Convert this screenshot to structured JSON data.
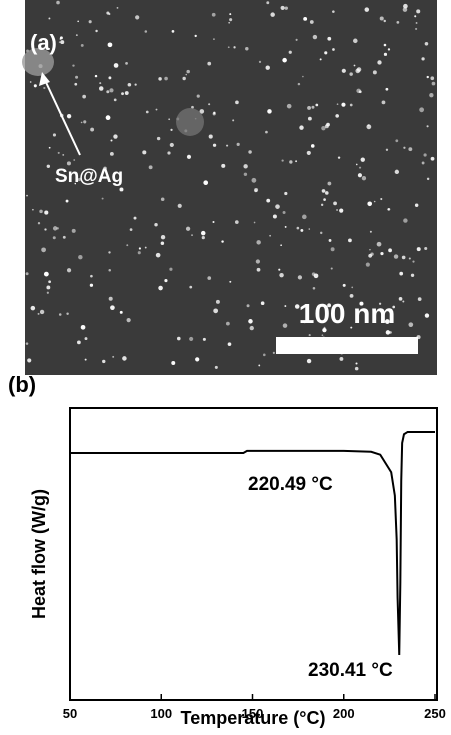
{
  "panel_a": {
    "label": "(a)",
    "annotation": "Sn@Ag",
    "scale_bar": "100 nm"
  },
  "chart_data": {
    "type": "line",
    "panel_label": "(b)",
    "xlabel": "Temperature (°C)",
    "ylabel": "Heat flow (W/g)",
    "xlim": [
      50,
      250
    ],
    "xticks": [
      50,
      100,
      150,
      200,
      250
    ],
    "ylim": [
      0,
      1
    ],
    "series": [
      {
        "color": "#000000",
        "x": [
          50,
          145,
          147,
          200,
          215,
          220,
          224,
          226,
          228,
          229,
          229.5,
          230.41,
          231,
          231.5,
          232,
          233,
          235,
          250
        ],
        "values": [
          0.846,
          0.846,
          0.853,
          0.853,
          0.85,
          0.84,
          0.8,
          0.78,
          0.7,
          0.55,
          0.35,
          0.154,
          0.4,
          0.75,
          0.88,
          0.91,
          0.918,
          0.918
        ]
      }
    ],
    "annotations": [
      "220.49 °C",
      "230.41 °C"
    ]
  }
}
